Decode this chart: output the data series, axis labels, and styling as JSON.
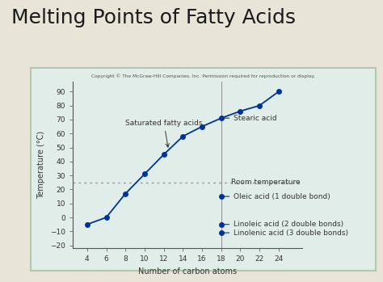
{
  "title": "Melting Points of Fatty Acids",
  "title_fontsize": 18,
  "title_color": "#1a1a1a",
  "copyright_text": "Copyright © The McGraw-Hill Companies, Inc. Permission required for reproduction or display.",
  "background_outer": "#e8e4d8",
  "background_chart_border": "#b0c8b0",
  "background_inner": "#e0ede8",
  "saturated_x": [
    4,
    6,
    8,
    10,
    12,
    14,
    16,
    18,
    20,
    22,
    24
  ],
  "saturated_y": [
    -5,
    0,
    17,
    31,
    45,
    58,
    65,
    71,
    76,
    80,
    90
  ],
  "line_color": "#003399",
  "marker_color": "#003399",
  "room_temp": 25,
  "room_temp_color": "#999999",
  "oleic_x": 18,
  "oleic_y": 15,
  "linoleic_x": 18,
  "linoleic_y": -5,
  "linolenic_x": 18,
  "linolenic_y": -11,
  "vline_x": 18,
  "vline_color": "#777777",
  "xlabel": "Number of carbon atoms",
  "ylabel": "Temperature (°C)",
  "xlim": [
    2.5,
    26.5
  ],
  "ylim": [
    -22,
    97
  ],
  "xticks": [
    4,
    6,
    8,
    10,
    12,
    14,
    16,
    18,
    20,
    22,
    24
  ],
  "yticks": [
    -20,
    -10,
    0,
    10,
    20,
    30,
    40,
    50,
    60,
    70,
    80,
    90
  ],
  "saturated_label": "Saturated fatty acids",
  "stearic_label": "Stearic acid",
  "oleic_label": "Oleic acid (1 double bond)",
  "linoleic_label": "Linoleic acid (2 double bonds)",
  "linolenic_label": "Linolenic acid (3 double bonds)",
  "room_temp_label": "Room temperature",
  "annotation_color": "#333333",
  "annotation_fontsize": 6.5
}
